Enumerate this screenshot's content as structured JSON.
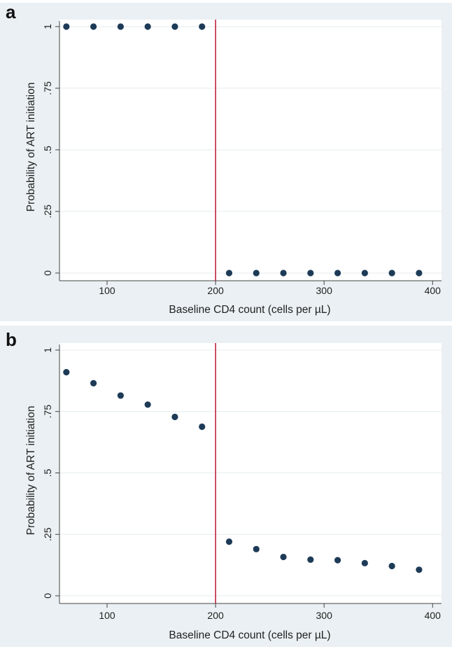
{
  "theme": {
    "outer_bg": "#eaf0f3",
    "plot_bg": "#ffffff",
    "grid_color": "#e6ebee",
    "axis_color": "#444444",
    "marker_color": "#1d3b57",
    "threshold_color": "#c0233f"
  },
  "chart_data": [
    {
      "type": "scatter",
      "panel": "a",
      "xlabel": "Baseline CD4 count (cells per µL)",
      "ylabel": "Probability of ART initiation",
      "xlim": [
        60,
        400
      ],
      "ylim": [
        0,
        1
      ],
      "x_ticks": [
        100,
        200,
        300,
        400
      ],
      "y_ticks": [
        0,
        0.25,
        0.5,
        0.75,
        1
      ],
      "y_tick_labels": [
        "0",
        ".25",
        ".5",
        ".75",
        "1"
      ],
      "grid": true,
      "threshold_x": 200,
      "x": [
        62.5,
        87.5,
        112.5,
        137.5,
        162.5,
        187.5,
        212.5,
        237.5,
        262.5,
        287.5,
        312.5,
        337.5,
        362.5,
        387.5
      ],
      "y": [
        1,
        1,
        1,
        1,
        1,
        1,
        0,
        0,
        0,
        0,
        0,
        0,
        0,
        0
      ]
    },
    {
      "type": "scatter",
      "panel": "b",
      "xlabel": "Baseline CD4 count (cells per µL)",
      "ylabel": "Probability of ART initiation",
      "xlim": [
        60,
        400
      ],
      "ylim": [
        0,
        1
      ],
      "x_ticks": [
        100,
        200,
        300,
        400
      ],
      "y_ticks": [
        0,
        0.25,
        0.5,
        0.75,
        1
      ],
      "y_tick_labels": [
        "0",
        ".25",
        ".5",
        ".75",
        "1"
      ],
      "grid": true,
      "threshold_x": 200,
      "x": [
        62.5,
        87.5,
        112.5,
        137.5,
        162.5,
        187.5,
        212.5,
        237.5,
        262.5,
        287.5,
        312.5,
        337.5,
        362.5,
        387.5
      ],
      "y": [
        0.91,
        0.865,
        0.815,
        0.778,
        0.728,
        0.688,
        0.22,
        0.19,
        0.158,
        0.147,
        0.145,
        0.133,
        0.121,
        0.106
      ]
    }
  ]
}
